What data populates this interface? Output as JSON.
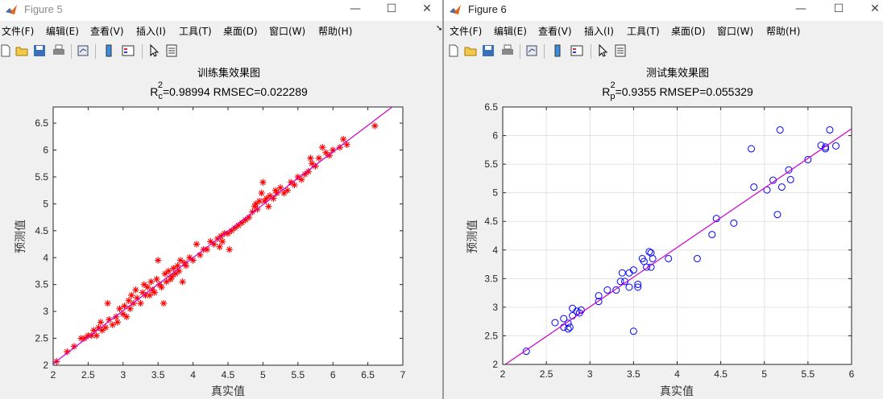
{
  "menus": [
    "文件(F)",
    "编辑(E)",
    "查看(V)",
    "插入(I)",
    "工具(T)",
    "桌面(D)",
    "窗口(W)",
    "帮助(H)"
  ],
  "window_controls": {
    "minimize": "—",
    "maximize": "☐",
    "close": "✕"
  },
  "colors": {
    "fit_line": "#cc00cc",
    "train_marker": "#ff0000",
    "test_marker": "#0000ff",
    "train_fit": "#7b68ee"
  },
  "toolbar_icons": [
    "new-file-icon",
    "open-folder-icon",
    "save-icon",
    "print-icon",
    "link-plot-icon",
    "colorbar-icon",
    "legend-icon",
    "pointer-icon",
    "property-inspector-icon"
  ],
  "figure5": {
    "window_title": "Figure 5",
    "title": "训练集效果图",
    "metric_R": "R",
    "metric_sub": "c",
    "metric_sup": "2",
    "metric_rest": "=0.98994  RMSEC=0.022289",
    "xlabel": "真实值",
    "ylabel": "预测值"
  },
  "figure6": {
    "window_title": "Figure 6",
    "title": "测试集效果图",
    "metric_R": "R",
    "metric_sub": "p",
    "metric_sup": "2",
    "metric_rest": "=0.9355  RMSEP=0.055329",
    "xlabel": "真实值",
    "ylabel": "预测值"
  },
  "chart_data": [
    {
      "type": "scatter",
      "title": "训练集效果图",
      "subtitle": "R_c^2=0.98994  RMSEC=0.022289",
      "xlabel": "真实值",
      "ylabel": "预测值",
      "xlim": [
        2,
        7
      ],
      "ylim": [
        2,
        6.8
      ],
      "xticks": [
        "2",
        "2.5",
        "3",
        "3.5",
        "4",
        "4.5",
        "5",
        "5.5",
        "6",
        "6.5",
        "7"
      ],
      "yticks": [
        "2",
        "2.5",
        "3",
        "3.5",
        "4",
        "4.5",
        "5",
        "5.5",
        "6",
        "6.5"
      ],
      "grid": false,
      "marker": "*",
      "points": [
        [
          2.05,
          2.07
        ],
        [
          2.2,
          2.25
        ],
        [
          2.3,
          2.35
        ],
        [
          2.4,
          2.5
        ],
        [
          2.45,
          2.5
        ],
        [
          2.5,
          2.55
        ],
        [
          2.55,
          2.55
        ],
        [
          2.58,
          2.65
        ],
        [
          2.62,
          2.55
        ],
        [
          2.65,
          2.7
        ],
        [
          2.68,
          2.8
        ],
        [
          2.7,
          2.65
        ],
        [
          2.75,
          2.7
        ],
        [
          2.78,
          3.15
        ],
        [
          2.8,
          2.85
        ],
        [
          2.85,
          2.75
        ],
        [
          2.9,
          2.9
        ],
        [
          2.92,
          2.8
        ],
        [
          2.95,
          3.05
        ],
        [
          3.0,
          2.95
        ],
        [
          3.02,
          3.1
        ],
        [
          3.05,
          2.9
        ],
        [
          3.08,
          3.2
        ],
        [
          3.1,
          3.05
        ],
        [
          3.12,
          3.3
        ],
        [
          3.15,
          3.15
        ],
        [
          3.18,
          3.4
        ],
        [
          3.2,
          3.25
        ],
        [
          3.25,
          3.15
        ],
        [
          3.28,
          3.35
        ],
        [
          3.3,
          3.5
        ],
        [
          3.32,
          3.3
        ],
        [
          3.35,
          3.45
        ],
        [
          3.38,
          3.3
        ],
        [
          3.4,
          3.55
        ],
        [
          3.42,
          3.4
        ],
        [
          3.45,
          3.35
        ],
        [
          3.48,
          3.6
        ],
        [
          3.5,
          3.95
        ],
        [
          3.52,
          3.5
        ],
        [
          3.55,
          3.45
        ],
        [
          3.58,
          3.15
        ],
        [
          3.6,
          3.7
        ],
        [
          3.62,
          3.55
        ],
        [
          3.65,
          3.75
        ],
        [
          3.68,
          3.6
        ],
        [
          3.7,
          3.65
        ],
        [
          3.72,
          3.8
        ],
        [
          3.75,
          3.7
        ],
        [
          3.78,
          3.85
        ],
        [
          3.8,
          3.75
        ],
        [
          3.82,
          3.95
        ],
        [
          3.85,
          3.55
        ],
        [
          3.88,
          3.9
        ],
        [
          3.9,
          3.85
        ],
        [
          3.95,
          4.0
        ],
        [
          4.0,
          3.95
        ],
        [
          4.05,
          4.25
        ],
        [
          4.1,
          4.05
        ],
        [
          4.15,
          4.15
        ],
        [
          4.2,
          4.15
        ],
        [
          4.25,
          4.3
        ],
        [
          4.3,
          4.25
        ],
        [
          4.35,
          4.35
        ],
        [
          4.38,
          4.2
        ],
        [
          4.4,
          4.4
        ],
        [
          4.42,
          4.3
        ],
        [
          4.45,
          4.45
        ],
        [
          4.5,
          4.45
        ],
        [
          4.52,
          4.15
        ],
        [
          4.55,
          4.5
        ],
        [
          4.6,
          4.55
        ],
        [
          4.65,
          4.6
        ],
        [
          4.7,
          4.65
        ],
        [
          4.75,
          4.7
        ],
        [
          4.8,
          4.75
        ],
        [
          4.85,
          4.85
        ],
        [
          4.88,
          4.95
        ],
        [
          4.9,
          5.0
        ],
        [
          4.92,
          4.9
        ],
        [
          4.95,
          5.05
        ],
        [
          4.98,
          5.2
        ],
        [
          5.0,
          5.4
        ],
        [
          5.02,
          5.05
        ],
        [
          5.05,
          5.1
        ],
        [
          5.08,
          4.95
        ],
        [
          5.1,
          5.15
        ],
        [
          5.15,
          5.1
        ],
        [
          5.18,
          5.25
        ],
        [
          5.2,
          5.2
        ],
        [
          5.25,
          5.3
        ],
        [
          5.3,
          5.2
        ],
        [
          5.35,
          5.25
        ],
        [
          5.4,
          5.4
        ],
        [
          5.45,
          5.35
        ],
        [
          5.5,
          5.5
        ],
        [
          5.55,
          5.45
        ],
        [
          5.6,
          5.55
        ],
        [
          5.65,
          5.6
        ],
        [
          5.68,
          5.85
        ],
        [
          5.7,
          5.75
        ],
        [
          5.75,
          5.7
        ],
        [
          5.8,
          5.85
        ],
        [
          5.85,
          6.05
        ],
        [
          5.9,
          5.95
        ],
        [
          5.95,
          5.9
        ],
        [
          6.0,
          6.0
        ],
        [
          6.1,
          6.05
        ],
        [
          6.15,
          6.2
        ],
        [
          6.2,
          6.1
        ],
        [
          6.6,
          6.45
        ]
      ],
      "fit_line": [
        [
          2,
          2.03
        ],
        [
          7,
          6.95
        ]
      ]
    },
    {
      "type": "scatter",
      "title": "测试集效果图",
      "subtitle": "R_p^2=0.9355  RMSEP=0.055329",
      "xlabel": "真实值",
      "ylabel": "预测值",
      "xlim": [
        2,
        6
      ],
      "ylim": [
        2,
        6.5
      ],
      "xticks": [
        "2",
        "2.5",
        "3",
        "3.5",
        "4",
        "4.5",
        "5",
        "5.5",
        "6"
      ],
      "yticks": [
        "2",
        "2.5",
        "3",
        "3.5",
        "4",
        "4.5",
        "5",
        "5.5",
        "6",
        "6.5"
      ],
      "grid": true,
      "marker": "o",
      "points": [
        [
          2.27,
          2.23
        ],
        [
          2.6,
          2.73
        ],
        [
          2.7,
          2.65
        ],
        [
          2.7,
          2.8
        ],
        [
          2.75,
          2.62
        ],
        [
          2.75,
          2.72
        ],
        [
          2.77,
          2.65
        ],
        [
          2.8,
          2.98
        ],
        [
          2.8,
          2.85
        ],
        [
          2.85,
          2.93
        ],
        [
          2.88,
          2.9
        ],
        [
          2.9,
          2.95
        ],
        [
          3.1,
          3.1
        ],
        [
          3.1,
          3.2
        ],
        [
          3.2,
          3.3
        ],
        [
          3.3,
          3.3
        ],
        [
          3.35,
          3.45
        ],
        [
          3.37,
          3.6
        ],
        [
          3.4,
          3.45
        ],
        [
          3.45,
          3.35
        ],
        [
          3.45,
          3.6
        ],
        [
          3.5,
          3.65
        ],
        [
          3.5,
          2.58
        ],
        [
          3.55,
          3.35
        ],
        [
          3.55,
          3.4
        ],
        [
          3.6,
          3.85
        ],
        [
          3.62,
          3.8
        ],
        [
          3.65,
          3.7
        ],
        [
          3.68,
          3.97
        ],
        [
          3.7,
          3.95
        ],
        [
          3.7,
          3.7
        ],
        [
          3.72,
          3.85
        ],
        [
          3.9,
          3.85
        ],
        [
          4.23,
          3.85
        ],
        [
          4.4,
          4.27
        ],
        [
          4.45,
          4.55
        ],
        [
          4.65,
          4.47
        ],
        [
          4.85,
          5.77
        ],
        [
          4.88,
          5.1
        ],
        [
          5.03,
          5.05
        ],
        [
          5.1,
          5.22
        ],
        [
          5.15,
          4.62
        ],
        [
          5.18,
          6.1
        ],
        [
          5.2,
          5.1
        ],
        [
          5.28,
          5.4
        ],
        [
          5.3,
          5.23
        ],
        [
          5.5,
          5.58
        ],
        [
          5.65,
          5.83
        ],
        [
          5.7,
          5.77
        ],
        [
          5.7,
          5.8
        ],
        [
          5.75,
          6.1
        ],
        [
          5.82,
          5.82
        ]
      ],
      "fit_line": [
        [
          2,
          1.97
        ],
        [
          6,
          6.12
        ]
      ]
    }
  ]
}
